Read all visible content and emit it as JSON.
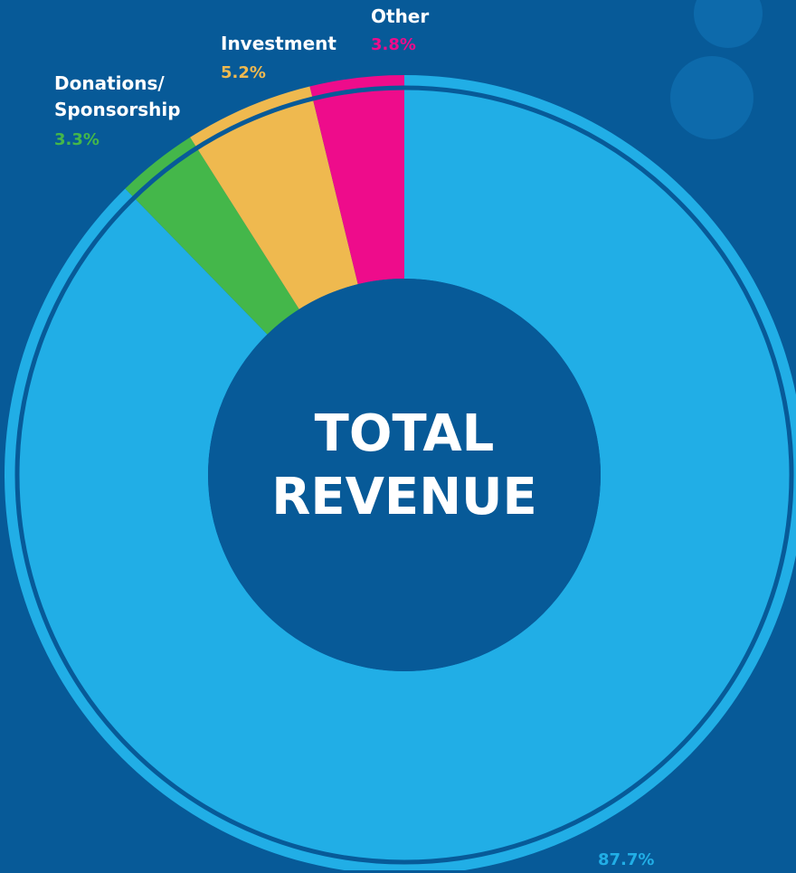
{
  "chart_data": {
    "type": "donut",
    "title": "TOTAL REVENUE",
    "categories": [
      null,
      "Donations/ Sponsorship",
      "Investment",
      "Other"
    ],
    "values": [
      87.7,
      3.3,
      5.2,
      3.8
    ],
    "value_labels": [
      "87.7%",
      "3.3%",
      "5.2%",
      "3.8%"
    ],
    "colors": [
      "#21aee6",
      "#44b74a",
      "#efb94f",
      "#ee0c8b"
    ]
  }
}
